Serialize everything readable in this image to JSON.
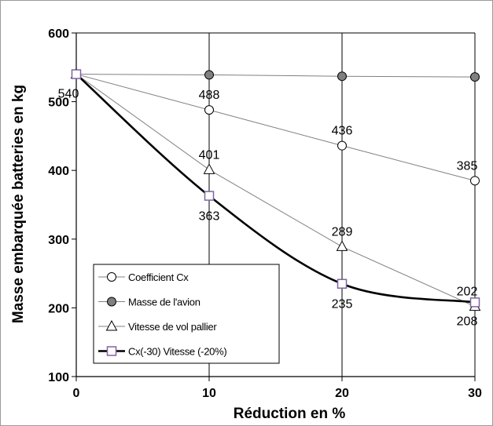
{
  "chart_data": {
    "type": "line",
    "title": "",
    "xlabel": "Réduction en %",
    "ylabel": "Masse embarquée batteries en kg",
    "x": [
      0,
      10,
      20,
      30
    ],
    "xticks": [
      "0",
      "10",
      "20",
      "30"
    ],
    "yticks": [
      "100",
      "200",
      "300",
      "400",
      "500",
      "600"
    ],
    "xlim": [
      0,
      30
    ],
    "ylim": [
      100,
      600
    ],
    "grid": "vertical",
    "legend_position": "bottom-left",
    "series": [
      {
        "name": "Coefficient Cx",
        "values": [
          540,
          488,
          436,
          385
        ],
        "marker": "circle-open",
        "color": "#808080",
        "labels": [
          "",
          "488",
          "436",
          "385"
        ]
      },
      {
        "name": "Masse de l'avion",
        "values": [
          540,
          539,
          537,
          536
        ],
        "marker": "circle-grey",
        "color": "#808080",
        "labels": [
          "",
          "",
          "",
          ""
        ]
      },
      {
        "name": "Vitesse de vol pallier",
        "values": [
          540,
          401,
          289,
          202
        ],
        "marker": "triangle",
        "color": "#808080",
        "labels": [
          "",
          "401",
          "289",
          "202"
        ]
      },
      {
        "name": "Cx(-30) Vitesse (-20%)",
        "values": [
          540,
          363,
          235,
          208
        ],
        "marker": "square-purple",
        "color": "#000000",
        "labels": [
          "540",
          "363",
          "235",
          "208"
        ]
      }
    ]
  }
}
